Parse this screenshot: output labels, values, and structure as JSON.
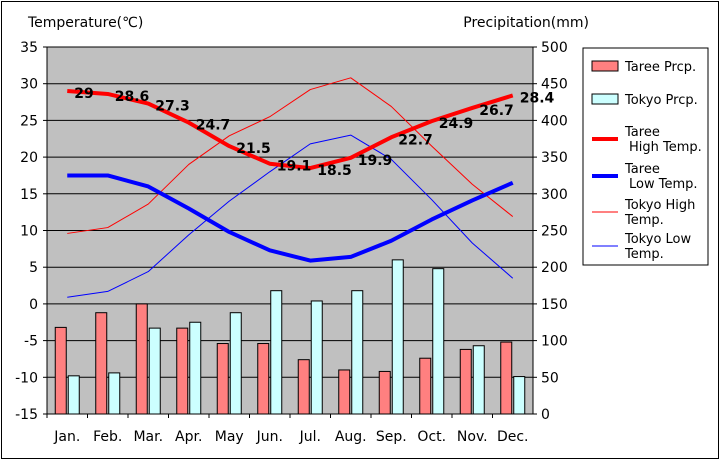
{
  "chart_data": {
    "type": "bar+line",
    "categories": [
      "Jan.",
      "Feb.",
      "Mar.",
      "Apr.",
      "May",
      "Jun.",
      "Jul.",
      "Aug.",
      "Sep.",
      "Oct.",
      "Nov.",
      "Dec."
    ],
    "y_left": {
      "label": "Temperature(℃)",
      "range": [
        -15,
        35
      ],
      "ticks": [
        "35",
        "30",
        "25",
        "20",
        "15",
        "10",
        "5",
        "0",
        "-5",
        "-10",
        "-15"
      ]
    },
    "y_right": {
      "label": "Precipitation(mm)",
      "range": [
        0,
        500
      ],
      "ticks": [
        "500",
        "450",
        "400",
        "350",
        "300",
        "250",
        "200",
        "150",
        "100",
        "50",
        "0"
      ]
    },
    "bar_series": [
      {
        "name": "Taree Prcp.",
        "color": "#ff8080",
        "values": [
          118,
          138,
          150,
          117,
          96,
          96,
          74,
          60,
          58,
          76,
          88,
          98
        ]
      },
      {
        "name": "Tokyo Prcp.",
        "color": "#ccffff",
        "values": [
          52,
          56,
          117,
          125,
          138,
          168,
          154,
          168,
          210,
          198,
          93,
          51
        ]
      }
    ],
    "line_series": [
      {
        "name": "Taree High Temp.",
        "color": "#ff0000",
        "width": 4,
        "values": [
          29,
          28.6,
          27.3,
          24.7,
          21.5,
          19.1,
          18.5,
          19.9,
          22.7,
          24.9,
          26.7,
          28.4
        ],
        "labels": [
          "29",
          "28.6",
          "27.3",
          "24.7",
          "21.5",
          "19.1",
          "18.5",
          "19.9",
          "22.7",
          "24.9",
          "26.7",
          "28.4"
        ]
      },
      {
        "name": "Taree Low Temp.",
        "color": "#0000ff",
        "width": 4,
        "values": [
          17.5,
          17.5,
          16,
          13,
          9.8,
          7.3,
          5.9,
          6.4,
          8.6,
          11.5,
          14.1,
          16.5
        ]
      },
      {
        "name": "Tokyo High Temp.",
        "color": "#ff0000",
        "width": 1,
        "values": [
          9.6,
          10.4,
          13.6,
          19,
          22.9,
          25.5,
          29.2,
          30.8,
          26.9,
          21.5,
          16.3,
          11.9
        ]
      },
      {
        "name": "Tokyo Low Temp.",
        "color": "#0000ff",
        "width": 1,
        "values": [
          0.9,
          1.7,
          4.4,
          9.4,
          14,
          18,
          21.8,
          23,
          19.7,
          14.2,
          8.3,
          3.5
        ]
      }
    ],
    "legend": {
      "placement": "right",
      "items": [
        {
          "kind": "bar",
          "lines": [
            "Taree Prcp."
          ],
          "color": "#ff8080"
        },
        {
          "kind": "bar",
          "lines": [
            "Tokyo Prcp."
          ],
          "color": "#ccffff"
        },
        {
          "kind": "line",
          "lines": [
            "Taree",
            "High Temp."
          ],
          "color": "#ff0000",
          "width": 4
        },
        {
          "kind": "line",
          "lines": [
            "Taree",
            "Low Temp."
          ],
          "color": "#0000ff",
          "width": 4
        },
        {
          "kind": "line",
          "lines": [
            "Tokyo High",
            "Temp."
          ],
          "color": "#ff0000",
          "width": 1
        },
        {
          "kind": "line",
          "lines": [
            "Tokyo Low",
            "Temp."
          ],
          "color": "#0000ff",
          "width": 1
        }
      ]
    },
    "plot_background": "#c0c0c0",
    "grid": true
  }
}
